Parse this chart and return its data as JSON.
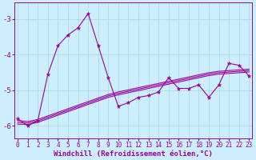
{
  "xlabel": "Windchill (Refroidissement éolien,°C)",
  "background_color": "#cceeff",
  "line_color": "#990099",
  "grid_color": "#aadddd",
  "x_values": [
    0,
    1,
    2,
    3,
    4,
    5,
    6,
    7,
    8,
    9,
    10,
    11,
    12,
    13,
    14,
    15,
    16,
    17,
    18,
    19,
    20,
    21,
    22,
    23
  ],
  "y_main": [
    -5.8,
    -6.0,
    -5.85,
    -4.55,
    -3.75,
    -3.45,
    -3.25,
    -2.85,
    -3.75,
    -4.65,
    -5.45,
    -5.35,
    -5.2,
    -5.15,
    -5.05,
    -4.65,
    -4.95,
    -4.95,
    -4.85,
    -5.2,
    -4.85,
    -4.25,
    -4.3,
    -4.6
  ],
  "y_line1": [
    -5.85,
    -5.88,
    -5.82,
    -5.72,
    -5.62,
    -5.52,
    -5.42,
    -5.32,
    -5.22,
    -5.12,
    -5.05,
    -4.99,
    -4.93,
    -4.87,
    -4.81,
    -4.75,
    -4.69,
    -4.63,
    -4.57,
    -4.51,
    -4.47,
    -4.45,
    -4.43,
    -4.41
  ],
  "y_line2": [
    -5.9,
    -5.92,
    -5.86,
    -5.76,
    -5.66,
    -5.56,
    -5.46,
    -5.36,
    -5.26,
    -5.16,
    -5.09,
    -5.03,
    -4.97,
    -4.91,
    -4.85,
    -4.79,
    -4.73,
    -4.67,
    -4.61,
    -4.55,
    -4.51,
    -4.49,
    -4.47,
    -4.45
  ],
  "y_line3": [
    -5.95,
    -5.96,
    -5.9,
    -5.8,
    -5.7,
    -5.6,
    -5.5,
    -5.4,
    -5.3,
    -5.2,
    -5.13,
    -5.07,
    -5.01,
    -4.95,
    -4.89,
    -4.83,
    -4.77,
    -4.71,
    -4.65,
    -4.59,
    -4.55,
    -4.53,
    -4.51,
    -4.49
  ],
  "xlim": [
    -0.3,
    23.3
  ],
  "ylim": [
    -6.35,
    -2.55
  ],
  "yticks": [
    -6,
    -5,
    -4,
    -3
  ],
  "xticks": [
    0,
    1,
    2,
    3,
    4,
    5,
    6,
    7,
    8,
    9,
    10,
    11,
    12,
    13,
    14,
    15,
    16,
    17,
    18,
    19,
    20,
    21,
    22,
    23
  ],
  "tick_fontsize": 5.5,
  "xlabel_fontsize": 6.5
}
